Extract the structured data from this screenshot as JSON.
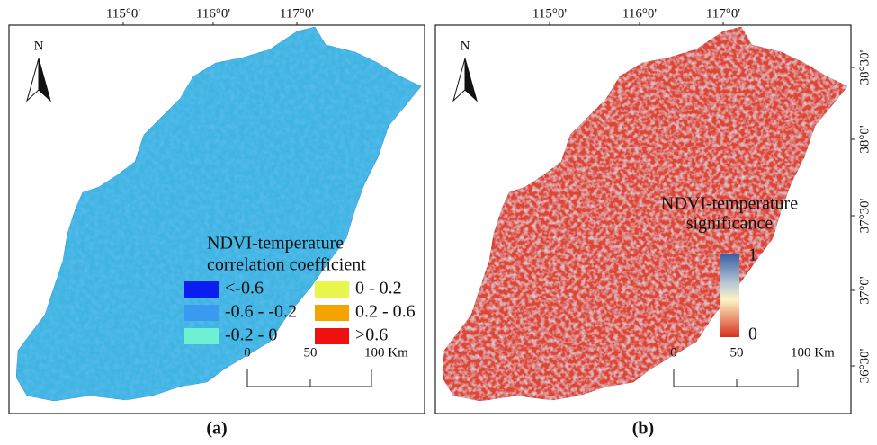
{
  "panels": [
    {
      "caption": "(a)",
      "north": "N",
      "lon_labels": [
        "115°0'",
        "116°0'",
        "117°0'"
      ],
      "legend": {
        "title": [
          "NDVI-temperature",
          "correlation coefficient"
        ],
        "items": [
          {
            "label": "<-0.6",
            "color": "#0a1ef0"
          },
          {
            "label": "0 - 0.2",
            "color": "#e8f54a"
          },
          {
            "label": "-0.6 - -0.2",
            "color": "#3a9af0"
          },
          {
            "label": "0.2 - 0.6",
            "color": "#f5a300"
          },
          {
            "label": "-0.2 - 0",
            "color": "#6ff0d0"
          },
          {
            "label": ">0.6",
            "color": "#f01010"
          }
        ]
      },
      "scale_labels": [
        "0",
        "50",
        "100 Km"
      ]
    },
    {
      "caption": "(b)",
      "north": "N",
      "lon_labels": [
        "115°0'",
        "116°0'",
        "117°0'"
      ],
      "lat_labels": [
        "38°30'",
        "38°0'",
        "37°30'",
        "37°0'",
        "36°30'"
      ],
      "legend": {
        "title": [
          "NDVI-temperature",
          "significance"
        ],
        "max": "1",
        "min": "0"
      },
      "scale_labels": [
        "0",
        "50",
        "100 Km"
      ]
    }
  ]
}
